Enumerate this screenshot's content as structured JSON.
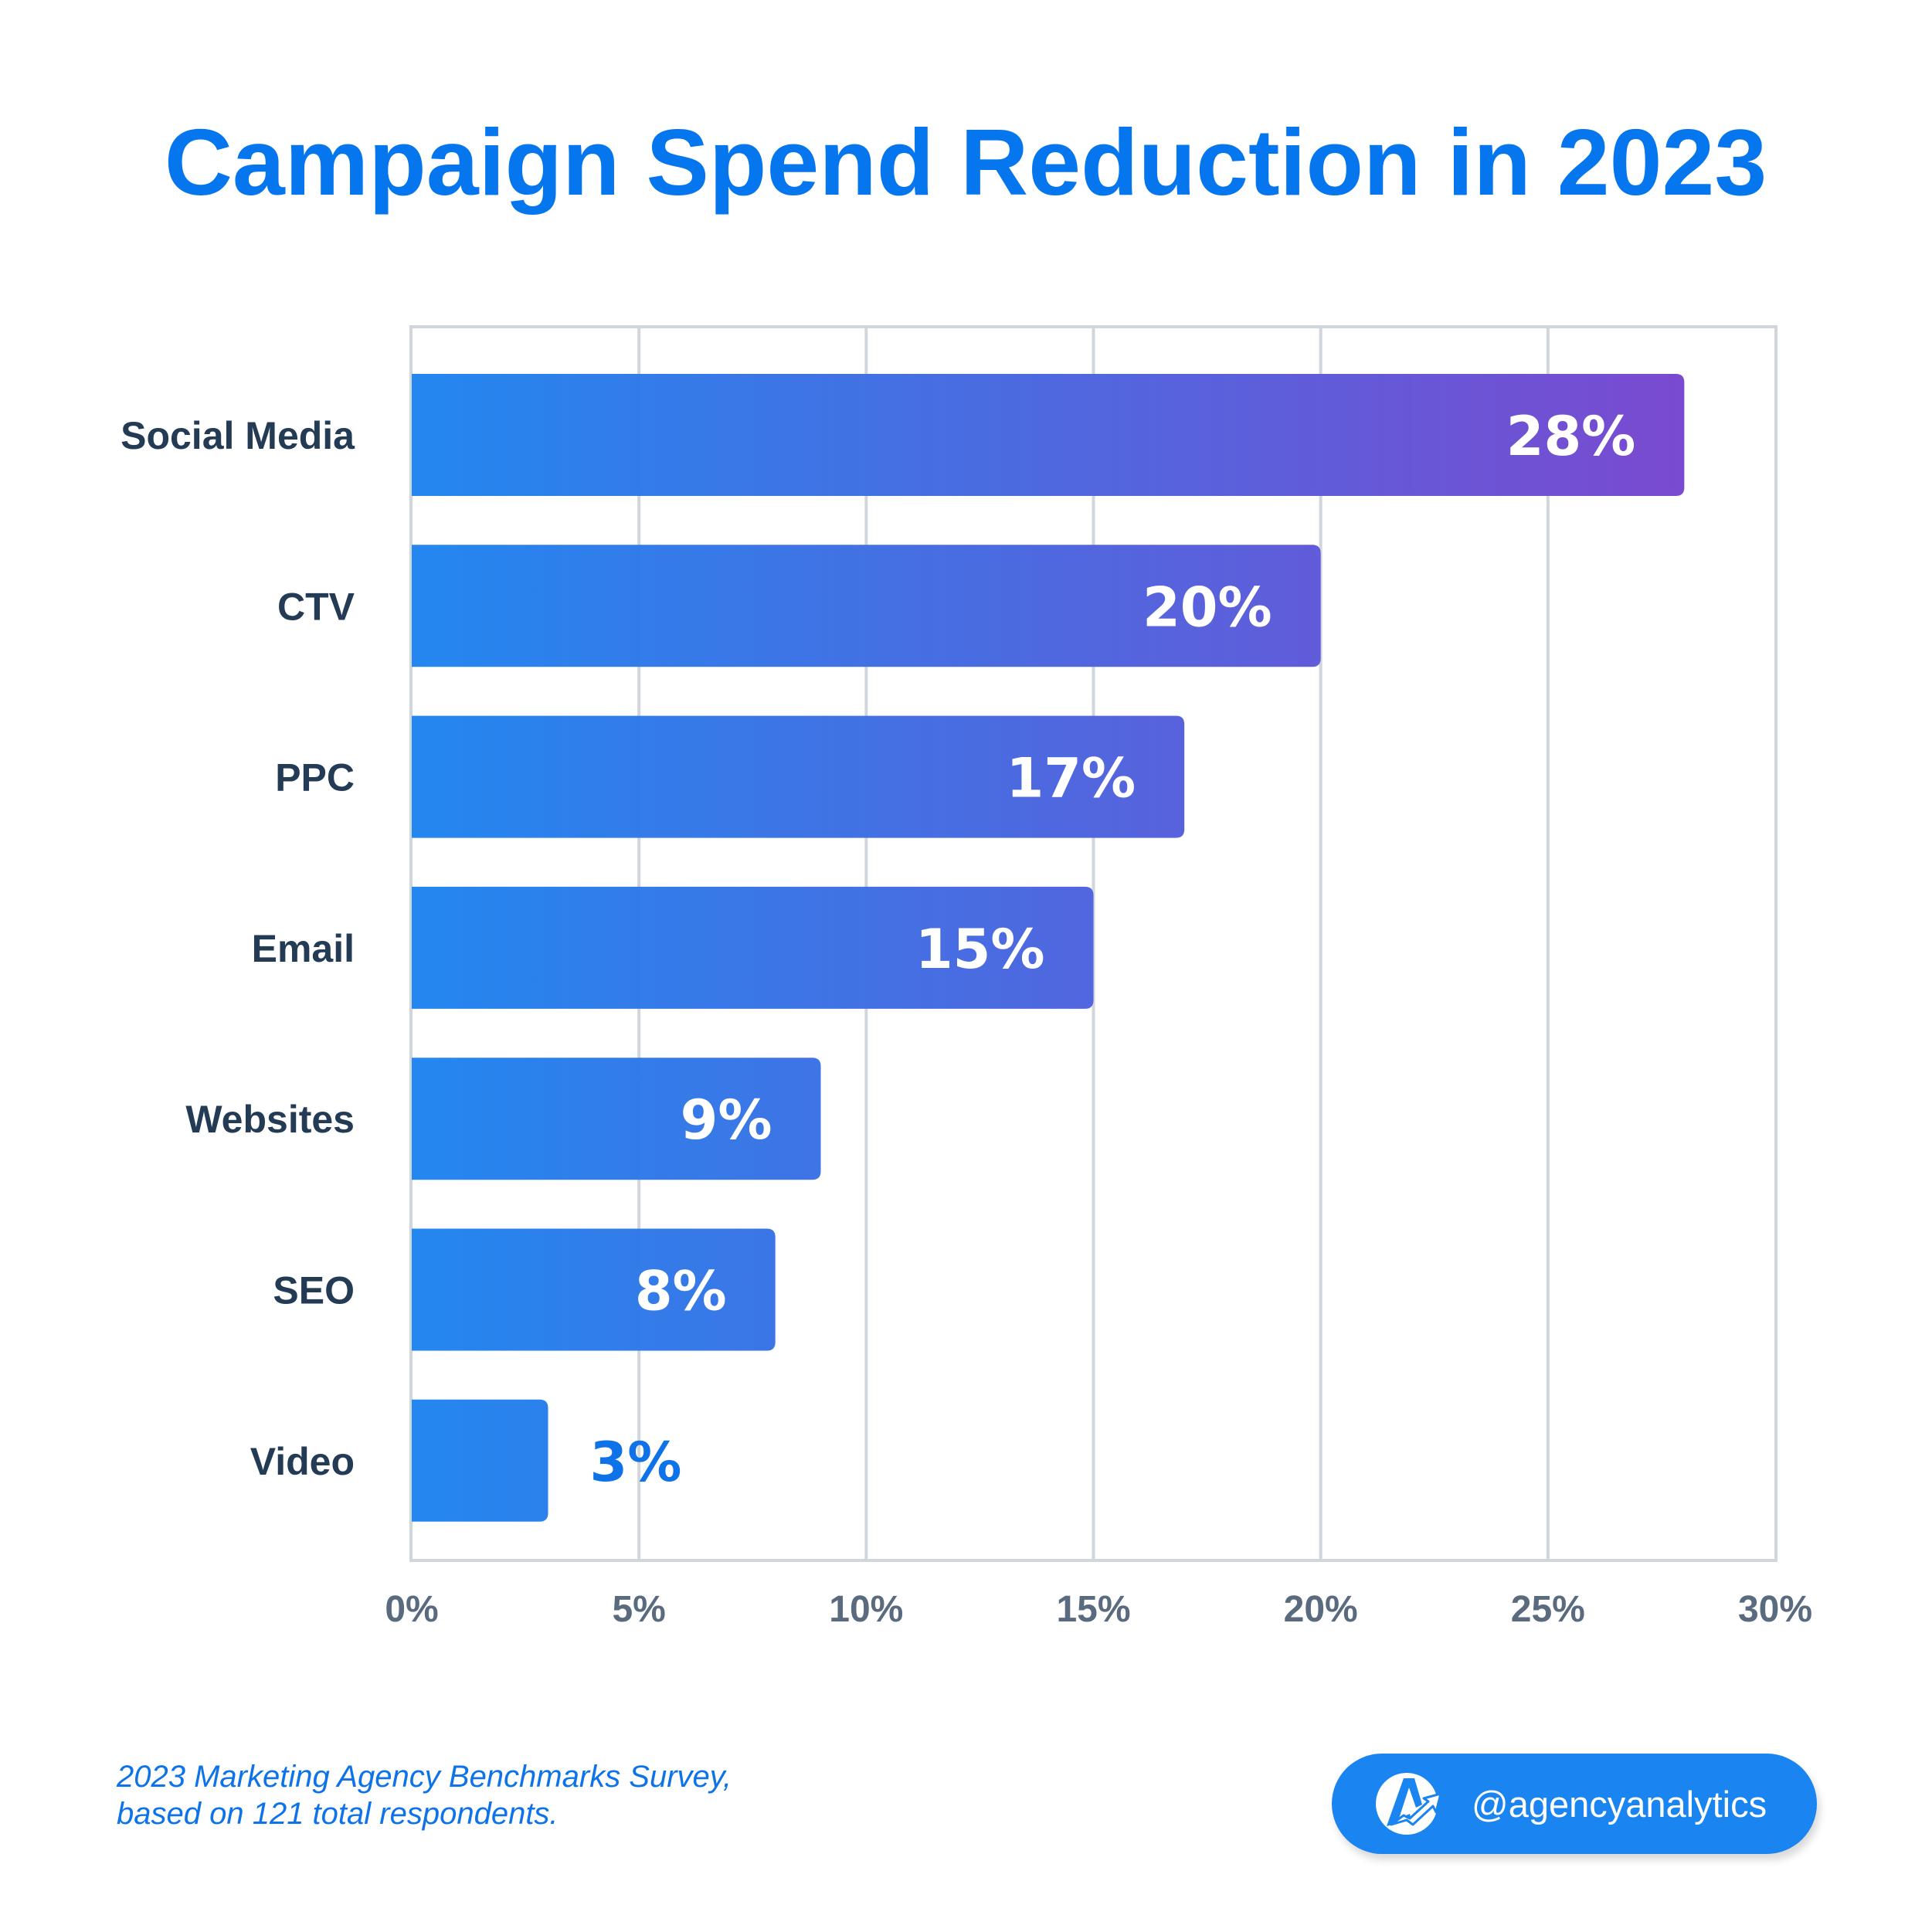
{
  "chart_data": {
    "type": "bar",
    "orientation": "horizontal",
    "title": "Campaign Spend Reduction in 2023",
    "xlabel": "",
    "ylabel": "",
    "categories": [
      "Social Media",
      "CTV",
      "PPC",
      "Email",
      "Websites",
      "SEO",
      "Video"
    ],
    "values": [
      28,
      20,
      17,
      15,
      9,
      8,
      3
    ],
    "value_labels": [
      "28%",
      "20%",
      "17%",
      "15%",
      "9%",
      "8%",
      "3%"
    ],
    "unit": "%",
    "xlim": [
      0,
      30
    ],
    "xticks": [
      0,
      5,
      10,
      15,
      20,
      25,
      30
    ],
    "xtick_labels": [
      "0%",
      "5%",
      "10%",
      "15%",
      "20%",
      "25%",
      "30%"
    ],
    "grid": "vertical",
    "legend": "none",
    "colors": {
      "title": "#0676ee",
      "gradient_start": "#2387ef",
      "gradient_end": "#7a4ad0",
      "category_label": "#243b55",
      "tick_label": "#5a6b80",
      "grid": "#d1d6dc",
      "outside_value_label": "#0e73e8"
    }
  },
  "footnote": {
    "line1": "2023 Marketing Agency Benchmarks Survey,",
    "line2": "based on 121 total respondents."
  },
  "handle": {
    "text": "@agencyanalytics",
    "icon": "agencyanalytics-logo-icon",
    "color": "#1a84f0"
  }
}
